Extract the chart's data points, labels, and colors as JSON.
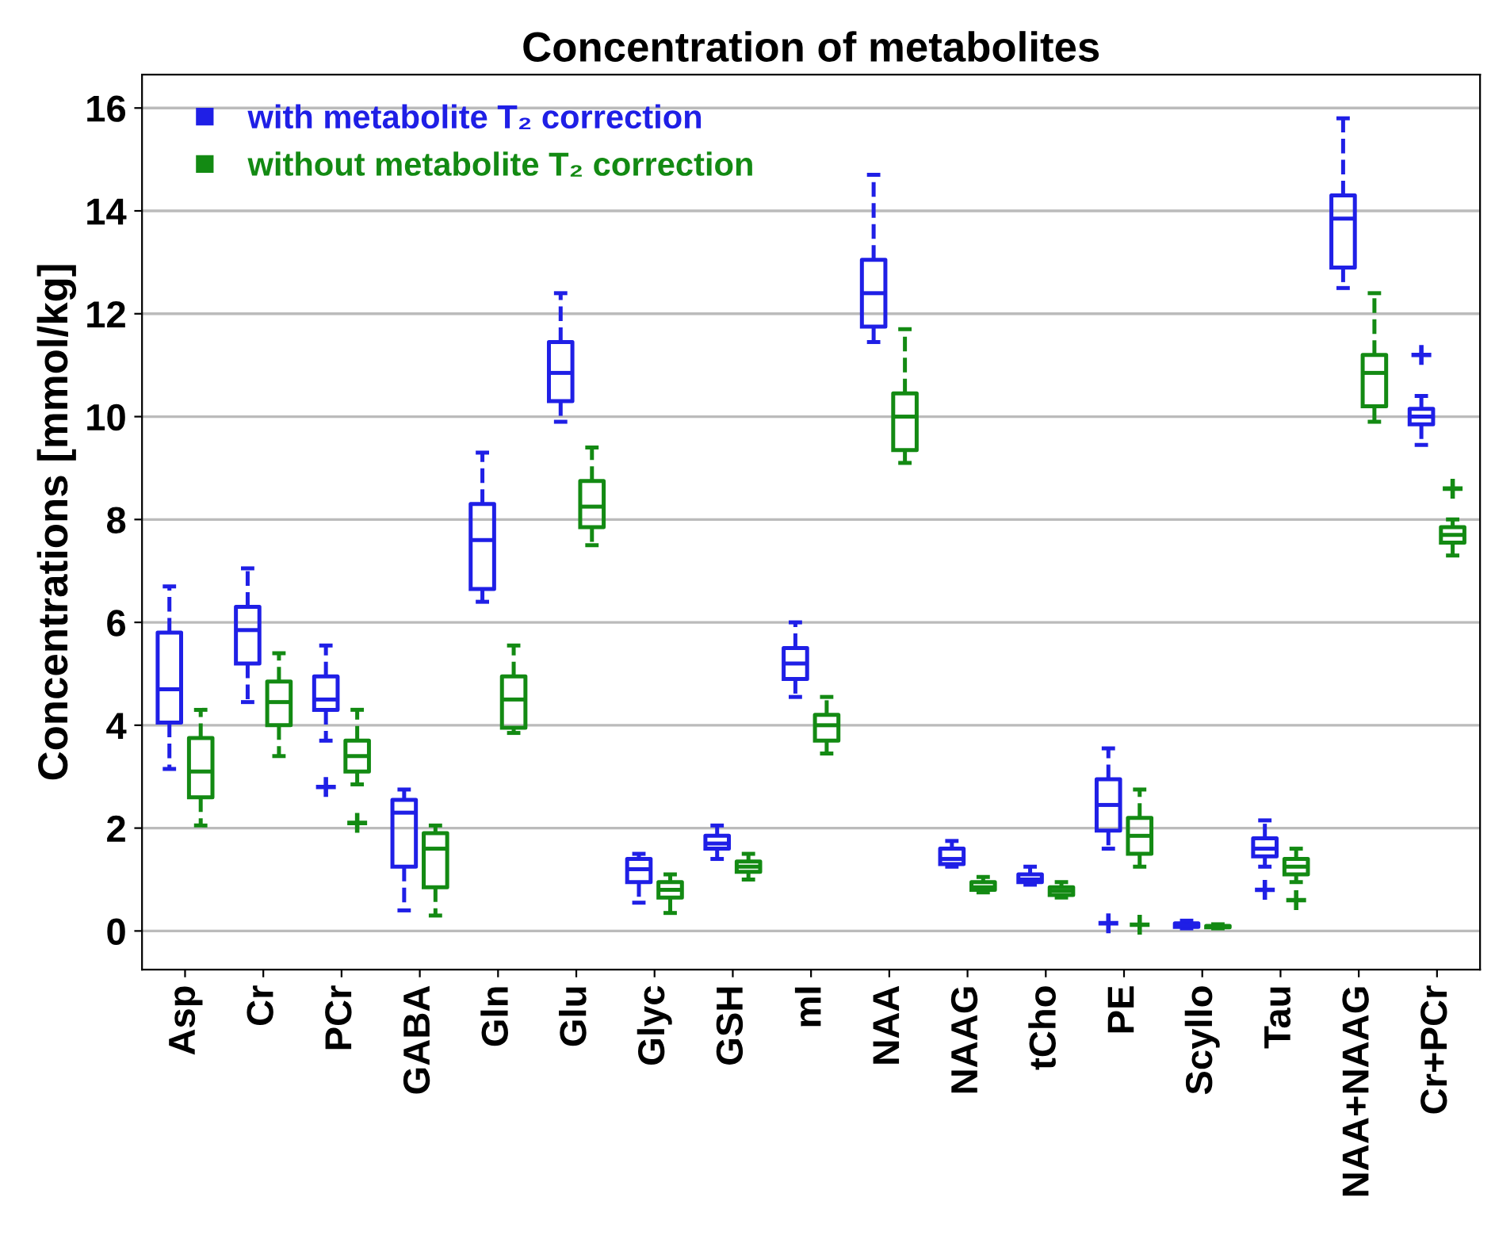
{
  "chart_data": {
    "type": "box",
    "title": "Concentration of metabolites",
    "ylabel": "Concentrations [mmol/kg]",
    "categories": [
      "Asp",
      "Cr",
      "PCr",
      "GABA",
      "Gln",
      "Glu",
      "Glyc",
      "GSH",
      "mI",
      "NAA",
      "NAAG",
      "tCho",
      "PE",
      "Scyllo",
      "Tau",
      "NAA+NAAG",
      "Cr+PCr"
    ],
    "ylim": [
      -0.75,
      16.65
    ],
    "yticks": [
      0,
      2,
      4,
      6,
      8,
      10,
      12,
      14,
      16
    ],
    "grid": "y",
    "legend": "top left",
    "line_style": "dashed",
    "series": [
      {
        "name": "with metabolite T₂ correction",
        "color": "#1f1fe6",
        "boxes": [
          {
            "low": 3.15,
            "q1": 4.05,
            "median": 4.7,
            "q3": 5.8,
            "high": 6.7
          },
          {
            "low": 4.45,
            "q1": 5.2,
            "median": 5.85,
            "q3": 6.3,
            "high": 7.05
          },
          {
            "low": 3.7,
            "q1": 4.3,
            "median": 4.5,
            "q3": 4.95,
            "high": 5.55,
            "outliers": [
              2.8
            ]
          },
          {
            "low": 0.4,
            "q1": 1.25,
            "median": 2.3,
            "q3": 2.55,
            "high": 2.75
          },
          {
            "low": 6.4,
            "q1": 6.65,
            "median": 7.6,
            "q3": 8.3,
            "high": 9.3
          },
          {
            "low": 9.9,
            "q1": 10.3,
            "median": 10.85,
            "q3": 11.45,
            "high": 12.4
          },
          {
            "low": 0.55,
            "q1": 0.95,
            "median": 1.2,
            "q3": 1.4,
            "high": 1.5
          },
          {
            "low": 1.4,
            "q1": 1.6,
            "median": 1.7,
            "q3": 1.85,
            "high": 2.05
          },
          {
            "low": 4.55,
            "q1": 4.9,
            "median": 5.2,
            "q3": 5.5,
            "high": 6.0
          },
          {
            "low": 11.45,
            "q1": 11.75,
            "median": 12.4,
            "q3": 13.05,
            "high": 14.7
          },
          {
            "low": 1.25,
            "q1": 1.3,
            "median": 1.4,
            "q3": 1.6,
            "high": 1.75
          },
          {
            "low": 0.9,
            "q1": 0.95,
            "median": 1.0,
            "q3": 1.1,
            "high": 1.25
          },
          {
            "low": 1.6,
            "q1": 1.95,
            "median": 2.45,
            "q3": 2.95,
            "high": 3.55,
            "outliers": [
              0.15
            ]
          },
          {
            "low": 0.05,
            "q1": 0.08,
            "median": 0.12,
            "q3": 0.15,
            "high": 0.2
          },
          {
            "low": 1.25,
            "q1": 1.45,
            "median": 1.6,
            "q3": 1.8,
            "high": 2.15,
            "outliers": [
              0.8
            ]
          },
          {
            "low": 12.5,
            "q1": 12.9,
            "median": 13.85,
            "q3": 14.3,
            "high": 15.8
          },
          {
            "low": 9.45,
            "q1": 9.85,
            "median": 10.0,
            "q3": 10.15,
            "high": 10.4,
            "outliers": [
              11.2
            ]
          }
        ]
      },
      {
        "name": "without metabolite T₂ correction",
        "color": "#138a13",
        "boxes": [
          {
            "low": 2.05,
            "q1": 2.6,
            "median": 3.1,
            "q3": 3.75,
            "high": 4.3
          },
          {
            "low": 3.4,
            "q1": 4.0,
            "median": 4.45,
            "q3": 4.85,
            "high": 5.4
          },
          {
            "low": 2.85,
            "q1": 3.1,
            "median": 3.4,
            "q3": 3.7,
            "high": 4.3,
            "outliers": [
              2.1
            ]
          },
          {
            "low": 0.3,
            "q1": 0.85,
            "median": 1.6,
            "q3": 1.9,
            "high": 2.05
          },
          {
            "low": 3.85,
            "q1": 3.95,
            "median": 4.5,
            "q3": 4.95,
            "high": 5.55
          },
          {
            "low": 7.5,
            "q1": 7.85,
            "median": 8.25,
            "q3": 8.75,
            "high": 9.4
          },
          {
            "low": 0.35,
            "q1": 0.65,
            "median": 0.8,
            "q3": 0.95,
            "high": 1.1
          },
          {
            "low": 1.0,
            "q1": 1.15,
            "median": 1.25,
            "q3": 1.35,
            "high": 1.5
          },
          {
            "low": 3.45,
            "q1": 3.7,
            "median": 4.0,
            "q3": 4.2,
            "high": 4.55
          },
          {
            "low": 9.1,
            "q1": 9.35,
            "median": 10.0,
            "q3": 10.45,
            "high": 11.7
          },
          {
            "low": 0.75,
            "q1": 0.8,
            "median": 0.85,
            "q3": 0.95,
            "high": 1.05
          },
          {
            "low": 0.65,
            "q1": 0.7,
            "median": 0.78,
            "q3": 0.85,
            "high": 0.95
          },
          {
            "low": 1.25,
            "q1": 1.5,
            "median": 1.85,
            "q3": 2.2,
            "high": 2.75,
            "outliers": [
              0.12
            ]
          },
          {
            "low": 0.05,
            "q1": 0.07,
            "median": 0.09,
            "q3": 0.1,
            "high": 0.13
          },
          {
            "low": 0.95,
            "q1": 1.1,
            "median": 1.25,
            "q3": 1.4,
            "high": 1.6,
            "outliers": [
              0.6
            ]
          },
          {
            "low": 9.9,
            "q1": 10.2,
            "median": 10.85,
            "q3": 11.2,
            "high": 12.4
          },
          {
            "low": 7.3,
            "q1": 7.55,
            "median": 7.7,
            "q3": 7.85,
            "high": 8.0,
            "outliers": [
              8.6
            ]
          }
        ]
      }
    ]
  }
}
